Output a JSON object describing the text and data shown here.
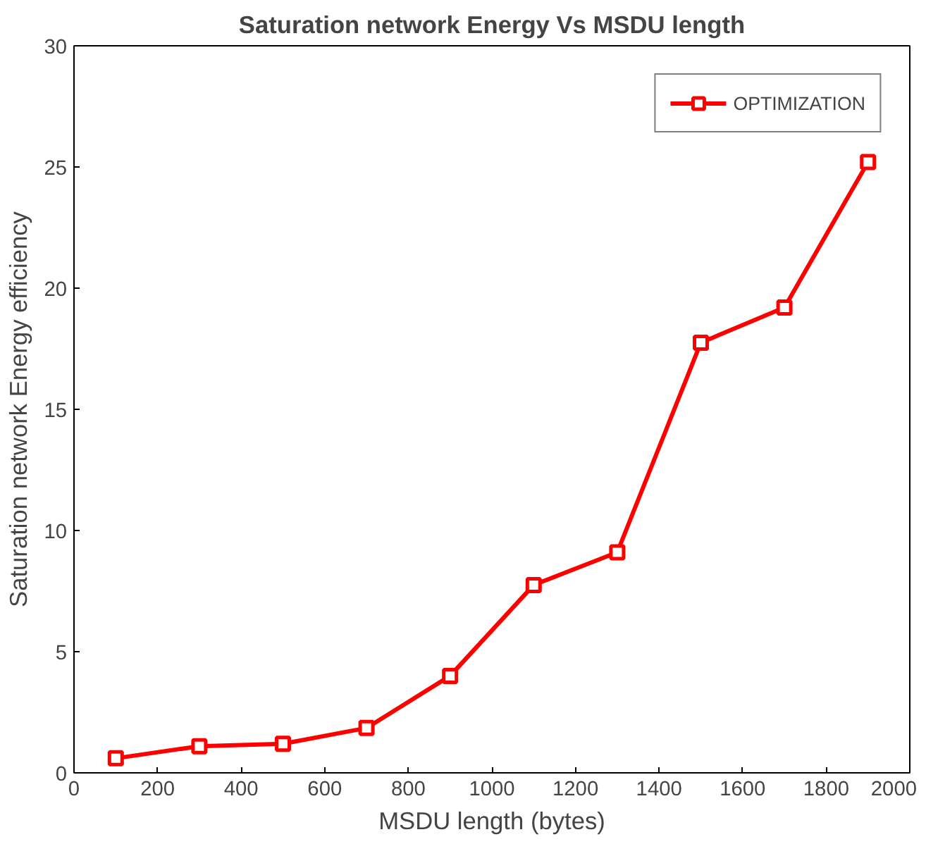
{
  "chart_data": {
    "type": "line",
    "title": "Saturation network Energy Vs MSDU length",
    "xlabel": "MSDU length (bytes)",
    "ylabel": "Saturation network Energy efficiency",
    "x": [
      100,
      300,
      500,
      700,
      900,
      1100,
      1300,
      1500,
      1700,
      1900
    ],
    "series": [
      {
        "name": "OPTIMIZATION",
        "color": "#ff0000",
        "values": [
          0.6,
          1.1,
          1.2,
          1.85,
          4.0,
          7.75,
          9.1,
          17.75,
          19.2,
          25.2
        ]
      }
    ],
    "xlim": [
      0,
      2000
    ],
    "ylim": [
      0,
      30
    ],
    "xticks": [
      0,
      200,
      400,
      600,
      800,
      1000,
      1200,
      1400,
      1600,
      1800,
      2000
    ],
    "yticks": [
      0,
      5,
      10,
      15,
      20,
      25,
      30
    ],
    "grid": false,
    "legend": "top right",
    "marker": "square",
    "line_style": "solid"
  }
}
